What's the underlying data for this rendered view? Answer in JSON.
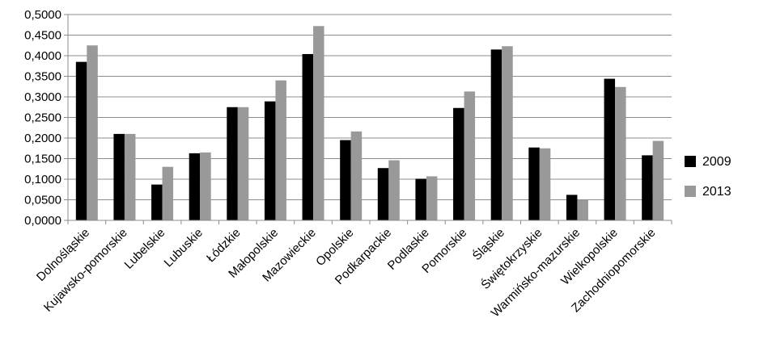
{
  "chart_data": {
    "type": "bar",
    "categories": [
      "Dolnośląskie",
      "Kujawsko-pomorskie",
      "Lubelskie",
      "Lubuskie",
      "Łódzkie",
      "Małopolskie",
      "Mazowieckie",
      "Opolskie",
      "Podkarpackie",
      "Podlaskie",
      "Pomorskie",
      "Śląskie",
      "Świętokrzyskie",
      "Warmińsko-mazurskie",
      "Wielkopolskie",
      "Zachodniopomorskie"
    ],
    "series": [
      {
        "name": "2009",
        "color": "#000000",
        "values": [
          0.385,
          0.21,
          0.087,
          0.163,
          0.275,
          0.289,
          0.404,
          0.195,
          0.127,
          0.101,
          0.273,
          0.415,
          0.177,
          0.062,
          0.344,
          0.158
        ]
      },
      {
        "name": "2013",
        "color": "#999999",
        "values": [
          0.425,
          0.21,
          0.13,
          0.165,
          0.275,
          0.34,
          0.472,
          0.216,
          0.146,
          0.107,
          0.313,
          0.423,
          0.175,
          0.049,
          0.324,
          0.193
        ]
      }
    ],
    "ylim": [
      0,
      0.5
    ],
    "ytick_step": 0.05,
    "yticks": [
      "0,0000",
      "0,0500",
      "0,1000",
      "0,1500",
      "0,2000",
      "0,2500",
      "0,3000",
      "0,3500",
      "0,4000",
      "0,4500",
      "0,5000"
    ],
    "grid": true,
    "legend": "right",
    "title": "",
    "xlabel": "",
    "ylabel": ""
  }
}
